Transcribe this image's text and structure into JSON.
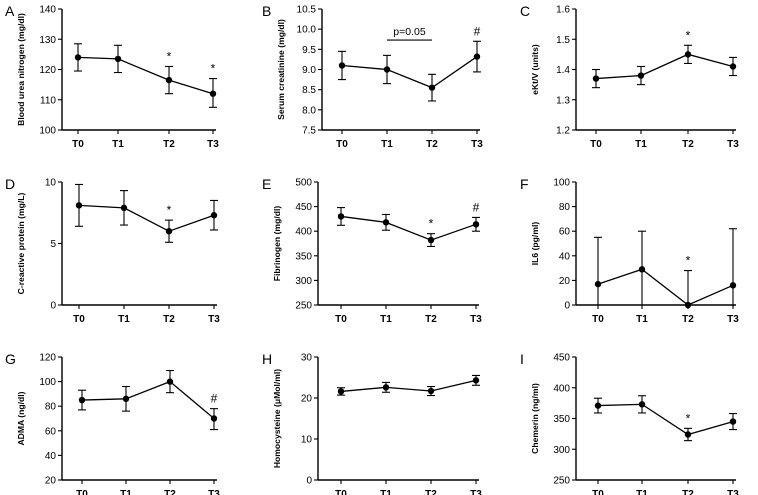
{
  "chart_data": [
    {
      "type": "line",
      "panel_label": "A",
      "ylabel": "Blood urea nitrogen (mg/dl)",
      "categories": [
        "T0",
        "T1",
        "T2",
        "T3"
      ],
      "values": [
        124,
        123.5,
        116.5,
        112
      ],
      "errors_upper": [
        128.5,
        128,
        121,
        117
      ],
      "errors_lower": [
        119.5,
        119,
        112,
        107.5
      ],
      "ylim": [
        100,
        140
      ],
      "yticks": [
        "100",
        "110",
        "120",
        "130",
        "140"
      ],
      "annotations": [
        {
          "text": "*",
          "category": "T2"
        },
        {
          "text": "*",
          "category": "T3"
        }
      ]
    },
    {
      "type": "line",
      "panel_label": "B",
      "ylabel": "Serum creatinine (mg/dl)",
      "categories": [
        "T0",
        "T1",
        "T2",
        "T3"
      ],
      "values": [
        9.1,
        9.0,
        8.55,
        9.32
      ],
      "errors_upper": [
        9.45,
        9.35,
        8.88,
        9.7
      ],
      "errors_lower": [
        8.75,
        8.65,
        8.22,
        8.94
      ],
      "ylim": [
        7.5,
        10.5
      ],
      "yticks": [
        "7.5",
        "8.0",
        "8.5",
        "9.0",
        "9.5",
        "10.0",
        "10.5"
      ],
      "annotations": [
        {
          "text": "#",
          "category": "T3"
        }
      ],
      "bracket": {
        "from": "T1",
        "to": "T2",
        "y": 9.73,
        "text": "p=0.05"
      }
    },
    {
      "type": "line",
      "panel_label": "C",
      "ylabel": "eKt/V (units)",
      "categories": [
        "T0",
        "T1",
        "T2",
        "T3"
      ],
      "values": [
        1.37,
        1.38,
        1.45,
        1.41
      ],
      "errors_upper": [
        1.4,
        1.41,
        1.48,
        1.44
      ],
      "errors_lower": [
        1.34,
        1.35,
        1.42,
        1.38
      ],
      "ylim": [
        1.2,
        1.6
      ],
      "yticks": [
        "1.2",
        "1.3",
        "1.4",
        "1.5",
        "1.6"
      ],
      "annotations": [
        {
          "text": "*",
          "category": "T2"
        }
      ]
    },
    {
      "type": "line",
      "panel_label": "D",
      "ylabel": "C-reactive protein (mg/L)",
      "categories": [
        "T0",
        "T1",
        "T2",
        "T3"
      ],
      "values": [
        8.1,
        7.9,
        6.0,
        7.3
      ],
      "errors_upper": [
        9.8,
        9.3,
        6.9,
        8.5
      ],
      "errors_lower": [
        6.4,
        6.5,
        5.1,
        6.1
      ],
      "ylim": [
        0,
        10
      ],
      "yticks": [
        "0",
        "5",
        "10"
      ],
      "annotations": [
        {
          "text": "*",
          "category": "T2"
        }
      ]
    },
    {
      "type": "line",
      "panel_label": "E",
      "ylabel": "Fibrinogen (mg/dl)",
      "categories": [
        "T0",
        "T1",
        "T2",
        "T3"
      ],
      "values": [
        430,
        418,
        382,
        414
      ],
      "errors_upper": [
        448,
        434,
        395,
        428
      ],
      "errors_lower": [
        412,
        402,
        369,
        400
      ],
      "ylim": [
        250,
        500
      ],
      "yticks": [
        "250",
        "300",
        "350",
        "400",
        "450",
        "500"
      ],
      "annotations": [
        {
          "text": "*",
          "category": "T2"
        },
        {
          "text": "#",
          "category": "T3"
        }
      ]
    },
    {
      "type": "line",
      "panel_label": "F",
      "ylabel": "IL6 (pg/ml)",
      "categories": [
        "T0",
        "T1",
        "T2",
        "T3"
      ],
      "values": [
        17,
        29,
        0,
        16
      ],
      "errors_upper": [
        55,
        60,
        28,
        62
      ],
      "errors_lower": [
        0,
        0,
        0,
        0
      ],
      "ylim": [
        0,
        100
      ],
      "yticks": [
        "0",
        "20",
        "40",
        "60",
        "80",
        "100"
      ],
      "annotations": [
        {
          "text": "*",
          "category": "T2"
        }
      ]
    },
    {
      "type": "line",
      "panel_label": "G",
      "ylabel": "ADMA (ng/dl)",
      "categories": [
        "T0",
        "T1",
        "T2",
        "T3"
      ],
      "values": [
        85,
        86,
        100,
        70
      ],
      "errors_upper": [
        93,
        96,
        109,
        78
      ],
      "errors_lower": [
        77,
        76,
        91,
        61
      ],
      "ylim": [
        20,
        120
      ],
      "yticks": [
        "20",
        "40",
        "60",
        "80",
        "100",
        "120"
      ],
      "annotations": [
        {
          "text": "#",
          "category": "T3"
        }
      ]
    },
    {
      "type": "line",
      "panel_label": "H",
      "ylabel": "Homocysteine (μMol/ml)",
      "categories": [
        "T0",
        "T1",
        "T2",
        "T3"
      ],
      "values": [
        21.6,
        22.6,
        21.7,
        24.3
      ],
      "errors_upper": [
        22.5,
        23.8,
        22.8,
        25.5
      ],
      "errors_lower": [
        20.7,
        21.4,
        20.6,
        23.1
      ],
      "ylim": [
        0,
        30
      ],
      "yticks": [
        "0",
        "10",
        "20",
        "30"
      ],
      "annotations": []
    },
    {
      "type": "line",
      "panel_label": "I",
      "ylabel": "Chemerin (ng/ml)",
      "categories": [
        "T0",
        "T1",
        "T2",
        "T3"
      ],
      "values": [
        371,
        373,
        324,
        345
      ],
      "errors_upper": [
        383,
        387,
        334,
        358
      ],
      "errors_lower": [
        359,
        359,
        314,
        332
      ],
      "ylim": [
        250,
        450
      ],
      "yticks": [
        "250",
        "300",
        "350",
        "400",
        "450"
      ],
      "annotations": [
        {
          "text": "*",
          "category": "T2"
        }
      ]
    }
  ]
}
